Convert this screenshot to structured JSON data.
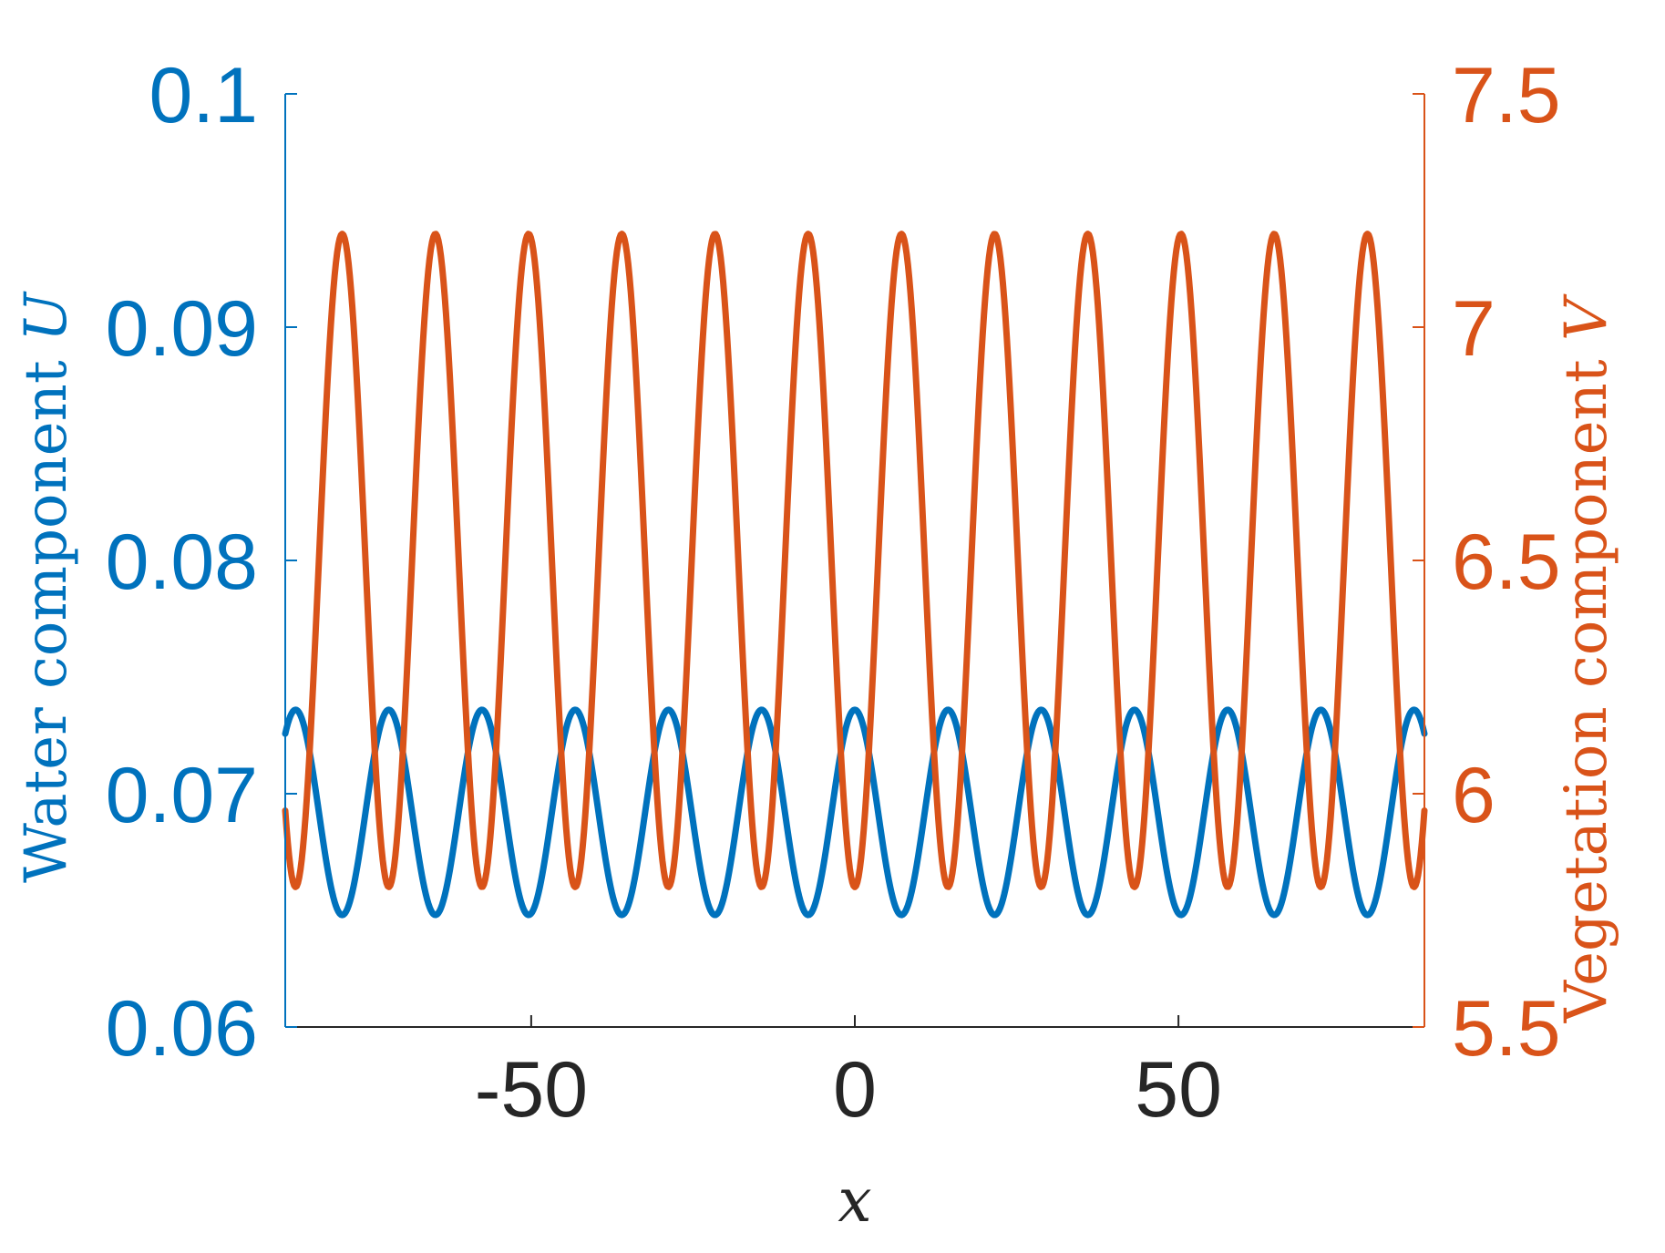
{
  "chart_data": {
    "type": "line",
    "title": "",
    "xlabel": "x",
    "xlim": [
      -88,
      88
    ],
    "x_ticks": [
      -50,
      0,
      50
    ],
    "x_tick_labels": [
      "-50",
      "0",
      "50"
    ],
    "y_left": {
      "label": "Water component U",
      "label_text": "Water component ",
      "label_var": "U",
      "lim": [
        0.06,
        0.1
      ],
      "ticks": [
        0.06,
        0.07,
        0.08,
        0.09,
        0.1
      ],
      "tick_labels": [
        "0.06",
        "0.07",
        "0.08",
        "0.09",
        "0.1"
      ],
      "color": "#0072BD"
    },
    "y_right": {
      "label": "Vegetation component V",
      "label_text": "Vegetation component ",
      "label_var": "V",
      "lim": [
        5.5,
        7.5
      ],
      "ticks": [
        5.5,
        6,
        6.5,
        7,
        7.5
      ],
      "tick_labels": [
        "5.5",
        "6",
        "6.5",
        "7",
        "7.5"
      ],
      "color": "#D95319"
    },
    "grid": false,
    "legend": "none",
    "series": [
      {
        "axis": "left",
        "color": "#0072BD",
        "model": "cosine",
        "mean": 0.0692,
        "amplitude": 0.0044,
        "period": 14.4,
        "peak_at_x": 0
      },
      {
        "axis": "right",
        "color": "#D95319",
        "model": "cosine",
        "mean": 6.5,
        "amplitude": 0.7,
        "period": 14.4,
        "peak_at_x": 7.2
      }
    ]
  }
}
